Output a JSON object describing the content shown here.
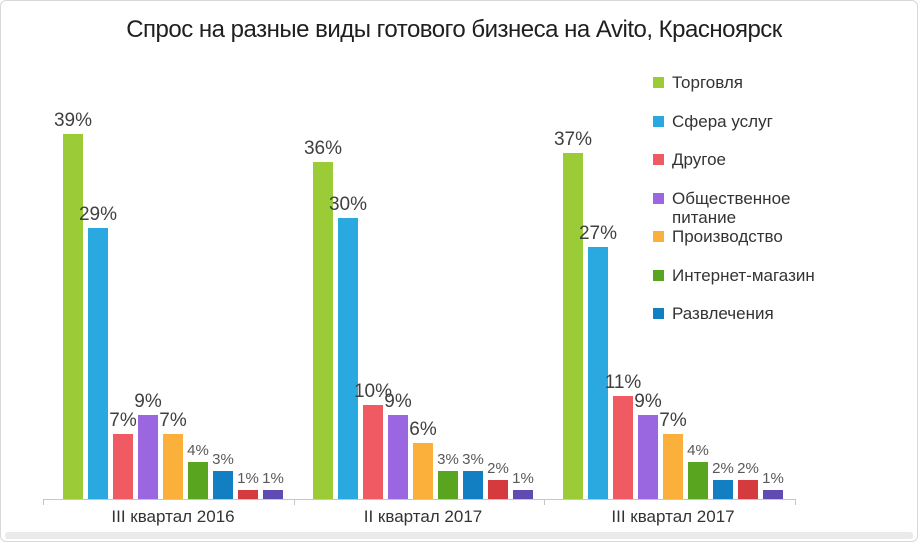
{
  "title": "Спрос на разные виды готового бизнеса на Avito, Красноярск",
  "chart_data": {
    "type": "bar",
    "title": "Спрос на разные виды готового бизнеса на Avito, Красноярск",
    "categories": [
      "III квартал 2016",
      "II квартал 2017",
      "III квартал 2017"
    ],
    "series": [
      {
        "name": "Торговля",
        "color": "#9BCB37",
        "values": [
          39,
          36,
          37
        ]
      },
      {
        "name": "Сфера услуг",
        "color": "#2AA9E0",
        "values": [
          29,
          30,
          27
        ]
      },
      {
        "name": "Другое",
        "color": "#F05A62",
        "values": [
          7,
          10,
          11
        ]
      },
      {
        "name": "Общественное питание",
        "color": "#9A67E0",
        "values": [
          9,
          9,
          9
        ]
      },
      {
        "name": "Производство",
        "color": "#FBB03B",
        "values": [
          7,
          6,
          7
        ]
      },
      {
        "name": "Интернет-магазин",
        "color": "#5AA520",
        "values": [
          4,
          3,
          4
        ]
      },
      {
        "name": "Развлечения",
        "color": "#117FC2",
        "values": [
          3,
          3,
          2
        ]
      },
      {
        "name": "",
        "color": "#D53A3E",
        "values": [
          1,
          2,
          2
        ]
      },
      {
        "name": "",
        "color": "#5F4BB2",
        "values": [
          1,
          1,
          1
        ]
      }
    ],
    "value_suffix": "%",
    "data_labels": true,
    "xlabel": "",
    "ylabel": "",
    "ylim": [
      0,
      42
    ],
    "grid": false,
    "legend_position": "right",
    "axis_color": "#c6c6c6"
  }
}
